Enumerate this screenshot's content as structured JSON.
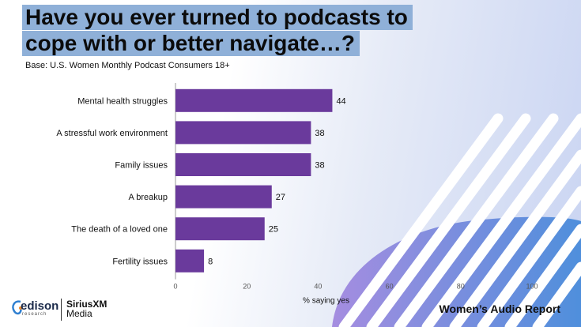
{
  "title_lines": [
    "Have you ever turned to podcasts to",
    "cope with or better navigate…?"
  ],
  "subtitle": "Base: U.S. Women Monthly Podcast Consumers 18+",
  "footer": {
    "report": "Women’s Audio Report",
    "edison_name": "edison",
    "edison_sub": "research",
    "sxm_line1": "SiriusXM",
    "sxm_line2": "Media"
  },
  "colors": {
    "bar": "#6a3a9c",
    "title_bg": "#8fb0d8"
  },
  "chart_data": {
    "type": "bar",
    "orientation": "horizontal",
    "categories": [
      "Mental health struggles",
      "A stressful work environment",
      "Family issues",
      "A breakup",
      "The death of a loved one",
      "Fertility issues"
    ],
    "values": [
      44,
      38,
      38,
      27,
      25,
      8
    ],
    "xlabel": "% saying yes",
    "xlim": [
      0,
      100
    ],
    "xticks": [
      0,
      20,
      40,
      60,
      80,
      100
    ],
    "grid": false,
    "data_labels": true
  }
}
